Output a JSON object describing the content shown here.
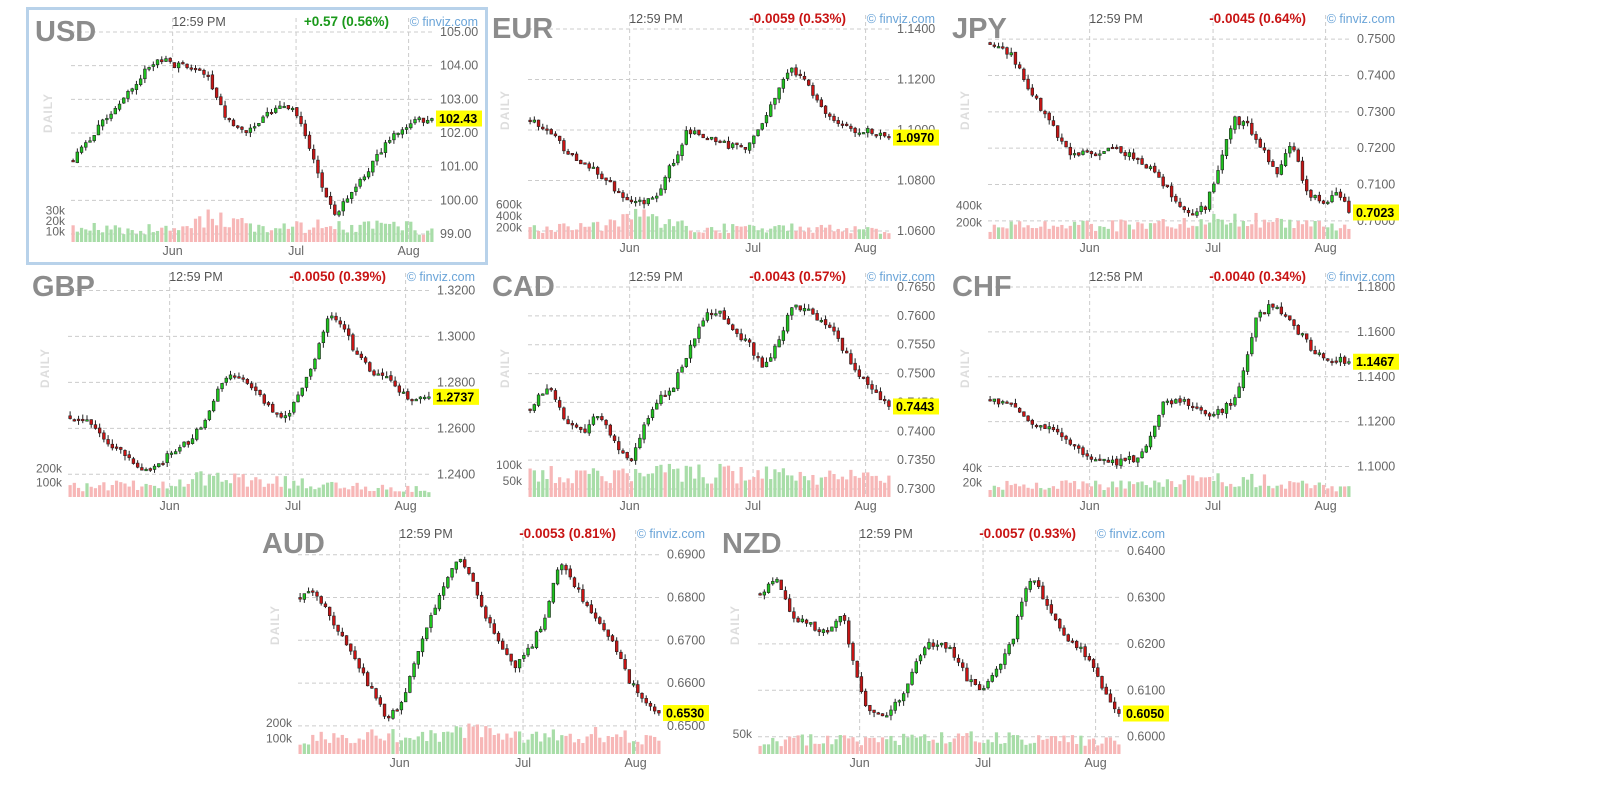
{
  "chart_data": [
    {
      "type": "candlestick",
      "symbol": "USD",
      "time": "12:59 PM",
      "change": "+0.57 (0.56%)",
      "direction": "up",
      "source": "© finviz.com",
      "timeframe": "DAILY",
      "last": 102.43,
      "last_label": "102.43",
      "ylim": [
        99.0,
        105.0
      ],
      "yticks": [
        "99.00",
        "100.00",
        "101.00",
        "102.00",
        "103.00",
        "104.00",
        "105.00"
      ],
      "vol_ticks": [
        "10k",
        "20k",
        "30k"
      ],
      "vol_max": 38,
      "x_labels": [
        "Jun",
        "Jul",
        "Aug"
      ],
      "close_path": [
        [
          0,
          101.2
        ],
        [
          0.08,
          102.3
        ],
        [
          0.15,
          103.2
        ],
        [
          0.2,
          103.8
        ],
        [
          0.24,
          104.2
        ],
        [
          0.29,
          104.0
        ],
        [
          0.34,
          103.9
        ],
        [
          0.38,
          103.6
        ],
        [
          0.42,
          102.6
        ],
        [
          0.47,
          102.0
        ],
        [
          0.52,
          102.3
        ],
        [
          0.57,
          102.8
        ],
        [
          0.62,
          102.6
        ],
        [
          0.66,
          101.5
        ],
        [
          0.7,
          100.2
        ],
        [
          0.73,
          99.6
        ],
        [
          0.78,
          100.3
        ],
        [
          0.83,
          101.0
        ],
        [
          0.88,
          101.8
        ],
        [
          0.94,
          102.3
        ],
        [
          1.0,
          102.43
        ]
      ],
      "vol_path": [
        [
          0,
          0.35
        ],
        [
          0.3,
          0.32
        ],
        [
          0.38,
          0.65
        ],
        [
          0.55,
          0.3
        ],
        [
          0.7,
          0.42
        ],
        [
          0.85,
          0.45
        ],
        [
          1.0,
          0.3
        ]
      ],
      "seed": 11
    },
    {
      "type": "candlestick",
      "symbol": "EUR",
      "time": "12:59 PM",
      "change": "-0.0059 (0.53%)",
      "direction": "down",
      "source": "© finviz.com",
      "timeframe": "DAILY",
      "last": 1.097,
      "last_label": "1.0970",
      "ylim": [
        1.06,
        1.14
      ],
      "yticks": [
        "1.0600",
        "1.0800",
        "1.1000",
        "1.1200",
        "1.1400"
      ],
      "vol_ticks": [
        "200k",
        "400k",
        "600k"
      ],
      "vol_max": 700,
      "x_labels": [
        "Jun",
        "Jul",
        "Aug"
      ],
      "close_path": [
        [
          0,
          1.104
        ],
        [
          0.05,
          1.1
        ],
        [
          0.1,
          1.092
        ],
        [
          0.16,
          1.086
        ],
        [
          0.22,
          1.079
        ],
        [
          0.27,
          1.072
        ],
        [
          0.32,
          1.071
        ],
        [
          0.36,
          1.076
        ],
        [
          0.4,
          1.088
        ],
        [
          0.44,
          1.1
        ],
        [
          0.5,
          1.097
        ],
        [
          0.55,
          1.094
        ],
        [
          0.6,
          1.092
        ],
        [
          0.64,
          1.1
        ],
        [
          0.68,
          1.112
        ],
        [
          0.72,
          1.124
        ],
        [
          0.76,
          1.122
        ],
        [
          0.8,
          1.112
        ],
        [
          0.85,
          1.103
        ],
        [
          0.9,
          1.1
        ],
        [
          0.95,
          1.1
        ],
        [
          1.0,
          1.097
        ]
      ],
      "vol_path": [
        [
          0,
          0.25
        ],
        [
          0.2,
          0.3
        ],
        [
          0.32,
          0.6
        ],
        [
          0.45,
          0.25
        ],
        [
          0.7,
          0.3
        ],
        [
          1.0,
          0.2
        ]
      ],
      "seed": 23
    },
    {
      "type": "candlestick",
      "symbol": "JPY",
      "time": "12:59 PM",
      "change": "-0.0045 (0.64%)",
      "direction": "down",
      "source": "© finviz.com",
      "timeframe": "DAILY",
      "last": 0.7023,
      "last_label": "0.7023",
      "ylim": [
        0.6972,
        0.7528
      ],
      "yticks": [
        "0.7000",
        "0.7100",
        "0.7200",
        "0.7300",
        "0.7400",
        "0.7500"
      ],
      "vol_ticks": [
        "200k",
        "400k"
      ],
      "vol_max": 480,
      "x_labels": [
        "Jun",
        "Jul",
        "Aug"
      ],
      "close_path": [
        [
          0,
          0.749
        ],
        [
          0.06,
          0.746
        ],
        [
          0.1,
          0.738
        ],
        [
          0.16,
          0.728
        ],
        [
          0.22,
          0.719
        ],
        [
          0.28,
          0.718
        ],
        [
          0.34,
          0.72
        ],
        [
          0.4,
          0.718
        ],
        [
          0.46,
          0.713
        ],
        [
          0.52,
          0.705
        ],
        [
          0.56,
          0.701
        ],
        [
          0.6,
          0.704
        ],
        [
          0.64,
          0.716
        ],
        [
          0.68,
          0.728
        ],
        [
          0.72,
          0.726
        ],
        [
          0.76,
          0.72
        ],
        [
          0.8,
          0.712
        ],
        [
          0.84,
          0.722
        ],
        [
          0.88,
          0.708
        ],
        [
          0.93,
          0.705
        ],
        [
          0.97,
          0.708
        ],
        [
          1.0,
          0.7023
        ]
      ],
      "vol_path": [
        [
          0,
          0.3
        ],
        [
          0.5,
          0.35
        ],
        [
          0.62,
          0.5
        ],
        [
          0.75,
          0.45
        ],
        [
          1.0,
          0.25
        ]
      ],
      "seed": 37
    },
    {
      "type": "candlestick",
      "symbol": "GBP",
      "time": "12:59 PM",
      "change": "-0.0050 (0.39%)",
      "direction": "down",
      "source": "© finviz.com",
      "timeframe": "DAILY",
      "last": 1.2737,
      "last_label": "1.2737",
      "ylim": [
        1.2336,
        1.3215
      ],
      "yticks": [
        "1.2400",
        "1.2600",
        "1.2800",
        "1.3000",
        "1.3200"
      ],
      "vol_ticks": [
        "100k",
        "200k"
      ],
      "vol_max": 280,
      "x_labels": [
        "Jun",
        "Jul",
        "Aug"
      ],
      "close_path": [
        [
          0,
          1.265
        ],
        [
          0.06,
          1.262
        ],
        [
          0.1,
          1.255
        ],
        [
          0.16,
          1.248
        ],
        [
          0.22,
          1.24
        ],
        [
          0.26,
          1.246
        ],
        [
          0.3,
          1.252
        ],
        [
          0.34,
          1.255
        ],
        [
          0.38,
          1.265
        ],
        [
          0.42,
          1.28
        ],
        [
          0.46,
          1.283
        ],
        [
          0.5,
          1.28
        ],
        [
          0.55,
          1.27
        ],
        [
          0.6,
          1.264
        ],
        [
          0.64,
          1.275
        ],
        [
          0.68,
          1.29
        ],
        [
          0.72,
          1.31
        ],
        [
          0.76,
          1.304
        ],
        [
          0.8,
          1.292
        ],
        [
          0.84,
          1.285
        ],
        [
          0.88,
          1.283
        ],
        [
          0.92,
          1.275
        ],
        [
          0.96,
          1.272
        ],
        [
          1.0,
          1.2737
        ]
      ],
      "vol_path": [
        [
          0,
          0.25
        ],
        [
          0.3,
          0.35
        ],
        [
          0.4,
          0.5
        ],
        [
          0.55,
          0.4
        ],
        [
          0.7,
          0.3
        ],
        [
          1.0,
          0.2
        ]
      ],
      "seed": 41
    },
    {
      "type": "candlestick",
      "symbol": "CAD",
      "time": "12:59 PM",
      "change": "-0.0043 (0.57%)",
      "direction": "down",
      "source": "© finviz.com",
      "timeframe": "DAILY",
      "last": 0.7443,
      "last_label": "0.7443",
      "ylim": [
        0.73,
        0.765
      ],
      "yticks": [
        "0.7300",
        "0.7350",
        "0.7400",
        "0.7450",
        "0.7500",
        "0.7550",
        "0.7600",
        "0.7650"
      ],
      "vol_ticks": [
        "50k",
        "100k"
      ],
      "vol_max": 125,
      "x_labels": [
        "Jun",
        "Jul",
        "Aug"
      ],
      "close_path": [
        [
          0,
          0.744
        ],
        [
          0.05,
          0.748
        ],
        [
          0.1,
          0.742
        ],
        [
          0.15,
          0.74
        ],
        [
          0.19,
          0.743
        ],
        [
          0.24,
          0.738
        ],
        [
          0.28,
          0.734
        ],
        [
          0.31,
          0.74
        ],
        [
          0.35,
          0.745
        ],
        [
          0.4,
          0.748
        ],
        [
          0.45,
          0.755
        ],
        [
          0.49,
          0.76
        ],
        [
          0.53,
          0.761
        ],
        [
          0.57,
          0.757
        ],
        [
          0.61,
          0.755
        ],
        [
          0.65,
          0.751
        ],
        [
          0.69,
          0.755
        ],
        [
          0.73,
          0.762
        ],
        [
          0.77,
          0.761
        ],
        [
          0.81,
          0.759
        ],
        [
          0.85,
          0.757
        ],
        [
          0.89,
          0.752
        ],
        [
          0.94,
          0.748
        ],
        [
          1.0,
          0.7443
        ]
      ],
      "vol_path": [
        [
          0,
          0.6
        ],
        [
          0.25,
          0.55
        ],
        [
          0.5,
          0.6
        ],
        [
          0.75,
          0.55
        ],
        [
          1.0,
          0.5
        ]
      ],
      "seed": 53
    },
    {
      "type": "candlestick",
      "symbol": "CHF",
      "time": "12:58 PM",
      "change": "-0.0040 (0.34%)",
      "direction": "down",
      "source": "© finviz.com",
      "timeframe": "DAILY",
      "last": 1.1467,
      "last_label": "1.1467",
      "ylim": [
        1.09,
        1.18
      ],
      "yticks": [
        "1.1000",
        "1.1200",
        "1.1400",
        "1.1600",
        "1.1800"
      ],
      "vol_ticks": [
        "20k",
        "40k"
      ],
      "vol_max": 55,
      "x_labels": [
        "Jun",
        "Jul",
        "Aug"
      ],
      "close_path": [
        [
          0,
          1.13
        ],
        [
          0.06,
          1.127
        ],
        [
          0.12,
          1.12
        ],
        [
          0.18,
          1.115
        ],
        [
          0.24,
          1.108
        ],
        [
          0.3,
          1.103
        ],
        [
          0.36,
          1.102
        ],
        [
          0.41,
          1.104
        ],
        [
          0.44,
          1.11
        ],
        [
          0.48,
          1.128
        ],
        [
          0.52,
          1.13
        ],
        [
          0.56,
          1.128
        ],
        [
          0.6,
          1.124
        ],
        [
          0.64,
          1.124
        ],
        [
          0.68,
          1.13
        ],
        [
          0.71,
          1.145
        ],
        [
          0.74,
          1.165
        ],
        [
          0.78,
          1.172
        ],
        [
          0.82,
          1.168
        ],
        [
          0.86,
          1.16
        ],
        [
          0.9,
          1.152
        ],
        [
          0.95,
          1.148
        ],
        [
          1.0,
          1.1467
        ]
      ],
      "vol_path": [
        [
          0,
          0.3
        ],
        [
          0.4,
          0.3
        ],
        [
          0.7,
          0.45
        ],
        [
          0.85,
          0.35
        ],
        [
          1.0,
          0.2
        ]
      ],
      "seed": 67
    },
    {
      "type": "candlestick",
      "symbol": "AUD",
      "time": "12:59 PM",
      "change": "-0.0053 (0.81%)",
      "direction": "down",
      "source": "© finviz.com",
      "timeframe": "DAILY",
      "last": 0.653,
      "last_label": "0.6530",
      "ylim": [
        0.6453,
        0.6925
      ],
      "yticks": [
        "0.6500",
        "0.6600",
        "0.6700",
        "0.6800",
        "0.6900"
      ],
      "vol_ticks": [
        "100k",
        "200k"
      ],
      "vol_max": 260,
      "x_labels": [
        "Jun",
        "Jul",
        "Aug"
      ],
      "close_path": [
        [
          0,
          0.68
        ],
        [
          0.04,
          0.682
        ],
        [
          0.08,
          0.676
        ],
        [
          0.12,
          0.671
        ],
        [
          0.16,
          0.665
        ],
        [
          0.2,
          0.658
        ],
        [
          0.24,
          0.652
        ],
        [
          0.28,
          0.655
        ],
        [
          0.32,
          0.665
        ],
        [
          0.36,
          0.675
        ],
        [
          0.4,
          0.682
        ],
        [
          0.44,
          0.69
        ],
        [
          0.48,
          0.684
        ],
        [
          0.52,
          0.675
        ],
        [
          0.56,
          0.668
        ],
        [
          0.6,
          0.664
        ],
        [
          0.64,
          0.668
        ],
        [
          0.68,
          0.675
        ],
        [
          0.72,
          0.688
        ],
        [
          0.76,
          0.684
        ],
        [
          0.8,
          0.678
        ],
        [
          0.84,
          0.674
        ],
        [
          0.88,
          0.668
        ],
        [
          0.92,
          0.66
        ],
        [
          0.96,
          0.656
        ],
        [
          1.0,
          0.653
        ]
      ],
      "vol_path": [
        [
          0,
          0.4
        ],
        [
          0.4,
          0.45
        ],
        [
          0.5,
          0.6
        ],
        [
          0.6,
          0.4
        ],
        [
          0.8,
          0.5
        ],
        [
          1.0,
          0.35
        ]
      ],
      "seed": 79
    },
    {
      "type": "candlestick",
      "symbol": "NZD",
      "time": "12:59 PM",
      "change": "-0.0057 (0.93%)",
      "direction": "down",
      "source": "© finviz.com",
      "timeframe": "DAILY",
      "last": 0.605,
      "last_label": "0.6050",
      "ylim": [
        0.598,
        0.6415
      ],
      "yticks": [
        "0.6000",
        "0.6100",
        "0.6200",
        "0.6300",
        "0.6400"
      ],
      "vol_ticks": [
        "50k"
      ],
      "vol_max": 100,
      "x_labels": [
        "Jun",
        "Jul",
        "Aug"
      ],
      "close_path": [
        [
          0,
          0.631
        ],
        [
          0.05,
          0.634
        ],
        [
          0.09,
          0.626
        ],
        [
          0.14,
          0.624
        ],
        [
          0.19,
          0.622
        ],
        [
          0.23,
          0.626
        ],
        [
          0.27,
          0.613
        ],
        [
          0.3,
          0.605
        ],
        [
          0.34,
          0.604
        ],
        [
          0.38,
          0.607
        ],
        [
          0.42,
          0.613
        ],
        [
          0.46,
          0.62
        ],
        [
          0.5,
          0.62
        ],
        [
          0.54,
          0.618
        ],
        [
          0.58,
          0.612
        ],
        [
          0.62,
          0.61
        ],
        [
          0.66,
          0.614
        ],
        [
          0.7,
          0.62
        ],
        [
          0.74,
          0.632
        ],
        [
          0.77,
          0.634
        ],
        [
          0.8,
          0.628
        ],
        [
          0.84,
          0.622
        ],
        [
          0.88,
          0.62
        ],
        [
          0.92,
          0.616
        ],
        [
          0.96,
          0.609
        ],
        [
          1.0,
          0.605
        ]
      ],
      "vol_path": [
        [
          0,
          0.35
        ],
        [
          0.4,
          0.35
        ],
        [
          0.6,
          0.4
        ],
        [
          0.8,
          0.35
        ],
        [
          1.0,
          0.3
        ]
      ],
      "seed": 97
    }
  ],
  "colors": {
    "up": "#1ec31e",
    "down": "#c81414",
    "vol_up": "#a8dda8",
    "vol_down": "#f7b7b7",
    "grid": "#cccccc",
    "change_up": "#1a991a",
    "change_down": "#c81414",
    "last_bg": "#ffff00",
    "selected_border": "#b8d2ea"
  }
}
